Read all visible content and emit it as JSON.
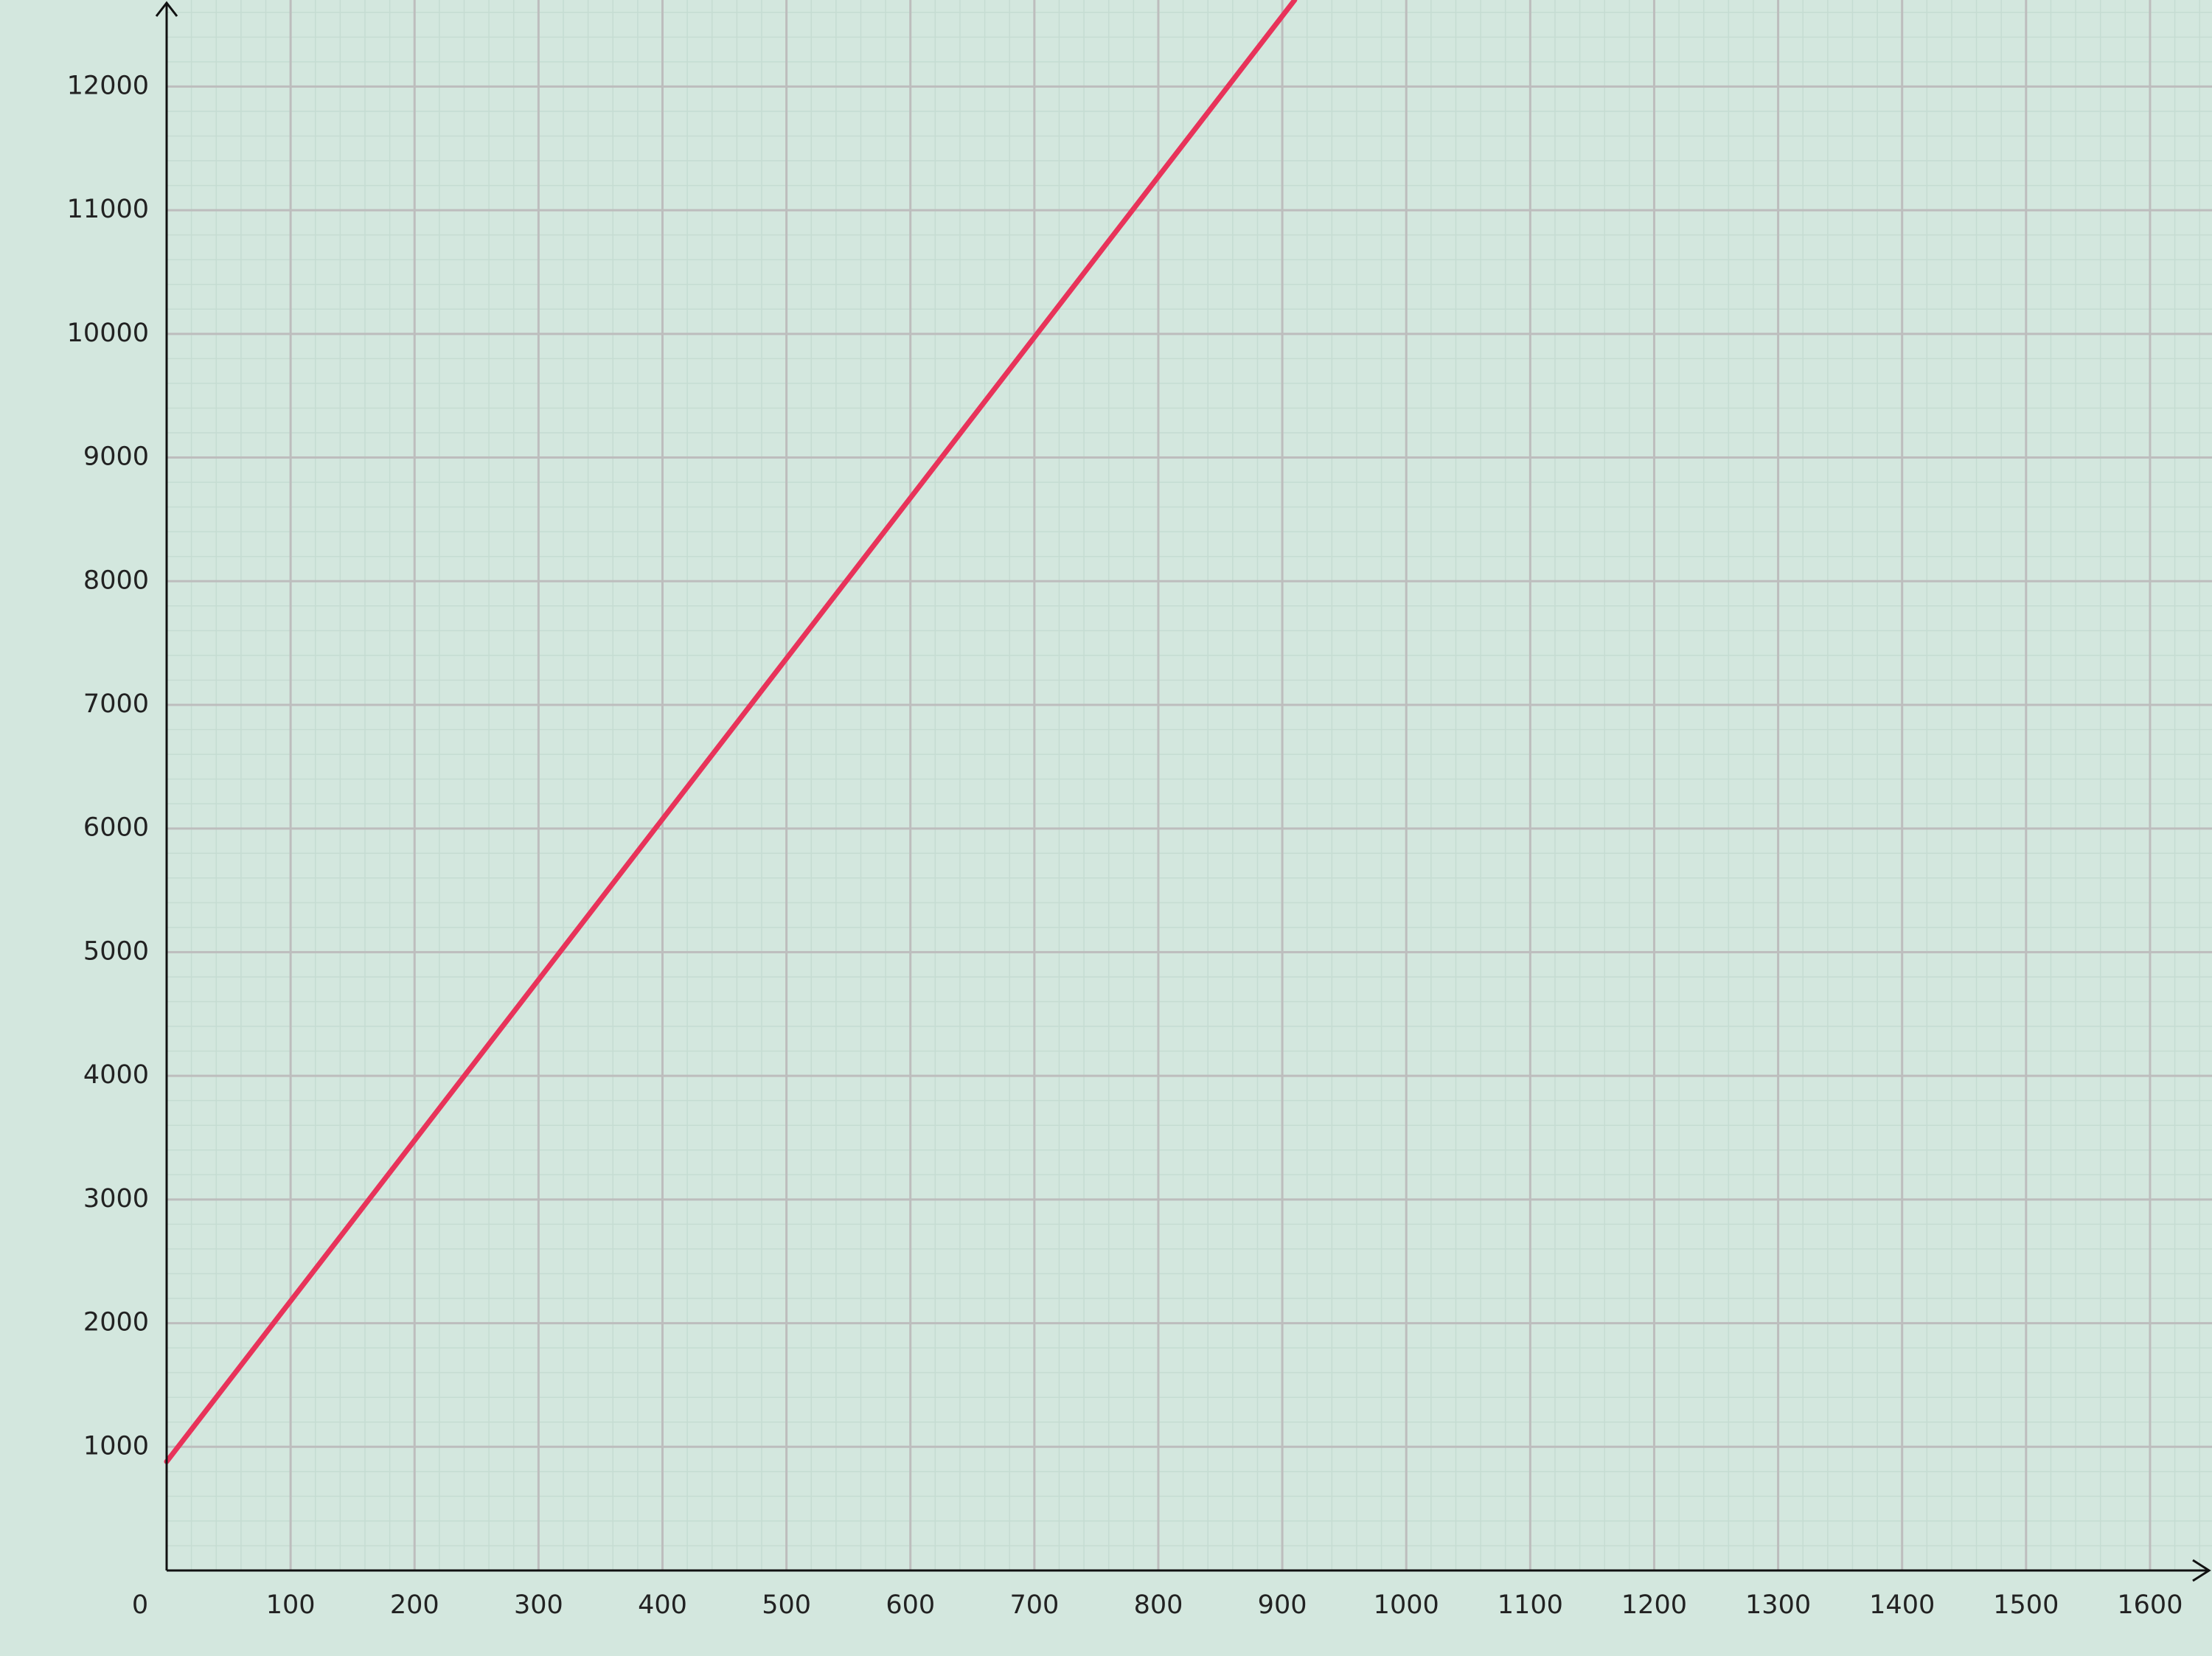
{
  "chart_data": {
    "type": "line",
    "title": "",
    "xlabel": "",
    "ylabel": "",
    "xlim": [
      0,
      1650
    ],
    "ylim": [
      0,
      12700
    ],
    "grid": true,
    "origin_label": "0",
    "x_ticks": [
      100,
      200,
      300,
      400,
      500,
      600,
      700,
      800,
      900,
      1000,
      1100,
      1200,
      1300,
      1400,
      1500,
      1600
    ],
    "x_tick_labels": [
      "100",
      "200",
      "300",
      "400",
      "500",
      "600",
      "700",
      "800",
      "900",
      "1000",
      "1100",
      "1200",
      "1300",
      "1400",
      "1500",
      "1600"
    ],
    "y_ticks": [
      1000,
      2000,
      3000,
      4000,
      5000,
      6000,
      7000,
      8000,
      9000,
      10000,
      11000,
      12000
    ],
    "y_tick_labels": [
      "1000",
      "2000",
      "3000",
      "4000",
      "5000",
      "6000",
      "7000",
      "8000",
      "9000",
      "10000",
      "11000",
      "12000"
    ],
    "series": [
      {
        "name": "line",
        "color": "#e8335a",
        "x": [
          0,
          910
        ],
        "y": [
          880,
          12700
        ]
      }
    ],
    "colors": {
      "background": "#d3e7de",
      "major_grid": "#bdbdbd",
      "minor_grid": "#c5dcd2",
      "axis": "#111111",
      "line": "#e8335a",
      "text": "#222222"
    }
  }
}
